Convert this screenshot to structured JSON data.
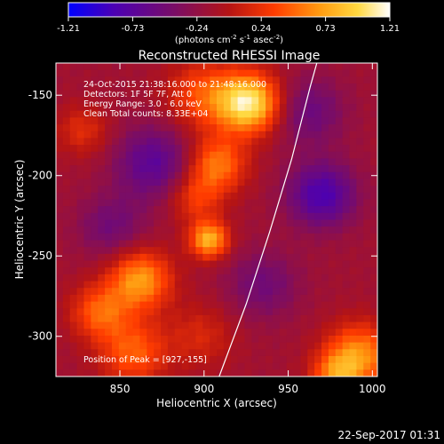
{
  "colorbar": {
    "ticks": [
      "-1.21",
      "-0.73",
      "-0.24",
      "0.24",
      "0.73",
      "1.21"
    ],
    "unit_base": "(photons cm",
    "unit_exp1": "-2",
    "unit_mid1": " s",
    "unit_exp2": "-1",
    "unit_mid2": " asec",
    "unit_exp3": "-2",
    "unit_end": ")",
    "colors": [
      "#0000ff",
      "#4b00b4",
      "#7a0d66",
      "#b51414",
      "#ff3c00",
      "#ff9a10",
      "#ffd840",
      "#ffffff"
    ]
  },
  "annotations": {
    "time_range": "24-Oct-2015 21:38:16.000 to 21:48:16.000",
    "detectors": "Detectors: 1F 5F 7F, Att 0",
    "energy": "Energy Range: 3.0 - 6.0 keV",
    "clean": "Clean    Total counts: 8.33E+04",
    "peak": "Position of Peak = [927,-155]"
  },
  "footer": {
    "date": "22-Sep-2017 01:31"
  },
  "chart_data": {
    "type": "heatmap",
    "title": "Reconstructed RHESSI Image",
    "xlabel": "Heliocentric X (arcsec)",
    "ylabel": "Heliocentric Y (arcsec)",
    "xlim": [
      812,
      1003
    ],
    "ylim": [
      -325,
      -130
    ],
    "xticks": [
      850,
      900,
      950,
      1000
    ],
    "yticks": [
      -150,
      -200,
      -250,
      -300
    ],
    "zlim": [
      -1.21,
      1.21
    ],
    "peak": [
      927,
      -155
    ],
    "limb_curve": [
      [
        909,
        -325
      ],
      [
        925,
        -280
      ],
      [
        939,
        -235
      ],
      [
        952,
        -190
      ],
      [
        963,
        -145
      ],
      [
        967,
        -130
      ]
    ],
    "sources": [
      {
        "x": 927,
        "y": -155,
        "amp": 1.21,
        "sigma": 13
      },
      {
        "x": 900,
        "y": -150,
        "amp": 0.55,
        "sigma": 15
      },
      {
        "x": 908,
        "y": -193,
        "amp": 0.7,
        "sigma": 12
      },
      {
        "x": 903,
        "y": -240,
        "amp": 0.95,
        "sigma": 8
      },
      {
        "x": 895,
        "y": -214,
        "amp": 0.45,
        "sigma": 11
      },
      {
        "x": 862,
        "y": -265,
        "amp": 0.85,
        "sigma": 13
      },
      {
        "x": 838,
        "y": -285,
        "amp": 0.6,
        "sigma": 12
      },
      {
        "x": 858,
        "y": -310,
        "amp": 0.6,
        "sigma": 14
      },
      {
        "x": 898,
        "y": -300,
        "amp": 0.3,
        "sigma": 14
      },
      {
        "x": 828,
        "y": -172,
        "amp": 0.35,
        "sigma": 11
      },
      {
        "x": 992,
        "y": -312,
        "amp": 0.8,
        "sigma": 14
      },
      {
        "x": 978,
        "y": -325,
        "amp": 0.6,
        "sigma": 10
      },
      {
        "x": 870,
        "y": -192,
        "amp": -0.55,
        "sigma": 16
      },
      {
        "x": 970,
        "y": -212,
        "amp": -0.7,
        "sigma": 14
      },
      {
        "x": 962,
        "y": -160,
        "amp": -0.4,
        "sigma": 15
      },
      {
        "x": 845,
        "y": -232,
        "amp": -0.35,
        "sigma": 14
      },
      {
        "x": 935,
        "y": -268,
        "amp": -0.35,
        "sigma": 15
      }
    ]
  }
}
